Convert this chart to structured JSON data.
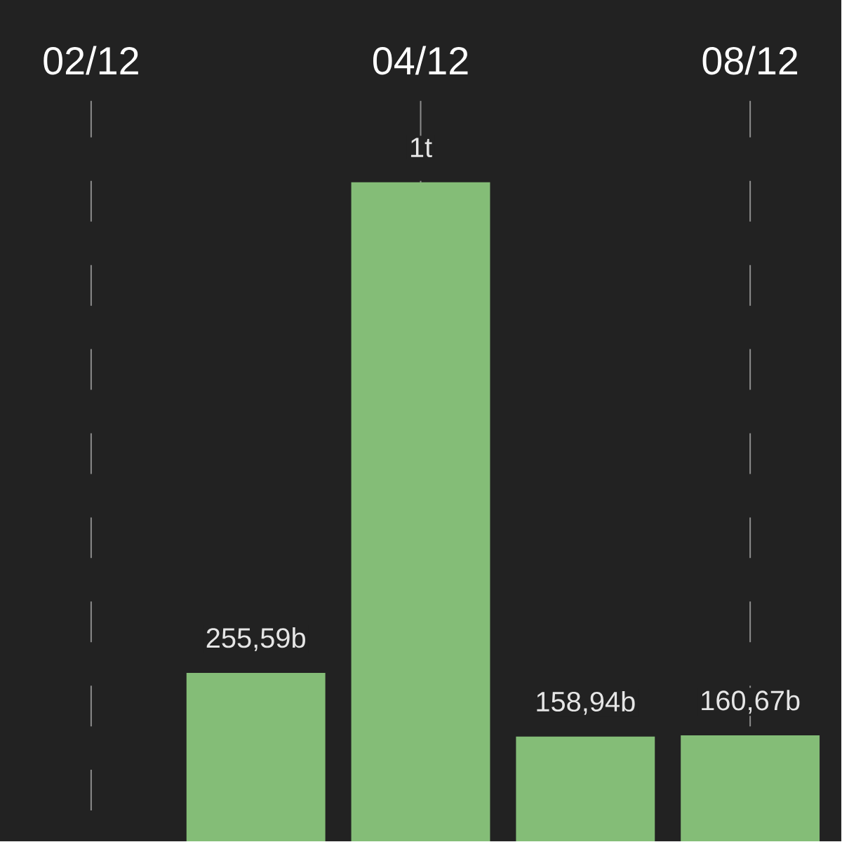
{
  "chart_data": {
    "type": "bar",
    "categories": [
      "02/12",
      null,
      "04/12",
      null,
      "08/12"
    ],
    "values": [
      null,
      255590000000,
      1000000000000,
      158940000000,
      160670000000
    ],
    "value_labels": [
      null,
      "255,59b",
      "1t",
      "158,94b",
      "160,67b"
    ],
    "color": "#84bd77",
    "grid": "x",
    "tick_labels": "x"
  }
}
